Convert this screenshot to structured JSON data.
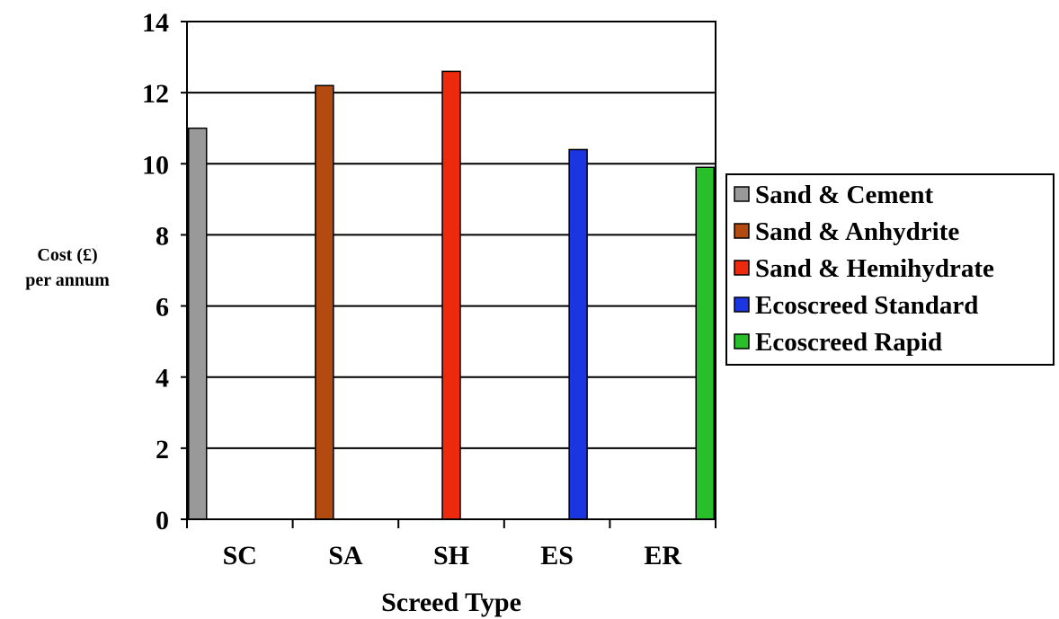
{
  "chart_data": {
    "type": "bar",
    "categories": [
      "SC",
      "SA",
      "SH",
      "ES",
      "ER"
    ],
    "series": [
      {
        "name": "Sand & Cement",
        "values": [
          11.0,
          null,
          null,
          null,
          null
        ],
        "color": "#999999"
      },
      {
        "name": "Sand & Anhydrite",
        "values": [
          null,
          12.2,
          null,
          null,
          null
        ],
        "color": "#b34a10"
      },
      {
        "name": "Sand & Hemihydrate",
        "values": [
          null,
          null,
          12.6,
          null,
          null
        ],
        "color": "#ee2a0e"
      },
      {
        "name": "Ecoscreed Standard",
        "values": [
          null,
          null,
          null,
          10.4,
          null
        ],
        "color": "#1b36e0"
      },
      {
        "name": "Ecoscreed Rapid",
        "values": [
          null,
          null,
          null,
          null,
          9.9
        ],
        "color": "#29bf2a"
      }
    ],
    "xlabel": "Screed Type",
    "ylabel_lines": [
      "Cost (£)",
      "per annum"
    ],
    "ylim": [
      0,
      14
    ],
    "yticks": [
      0,
      2,
      4,
      6,
      8,
      10,
      12,
      14
    ],
    "grid": true,
    "legend_position": "right"
  }
}
